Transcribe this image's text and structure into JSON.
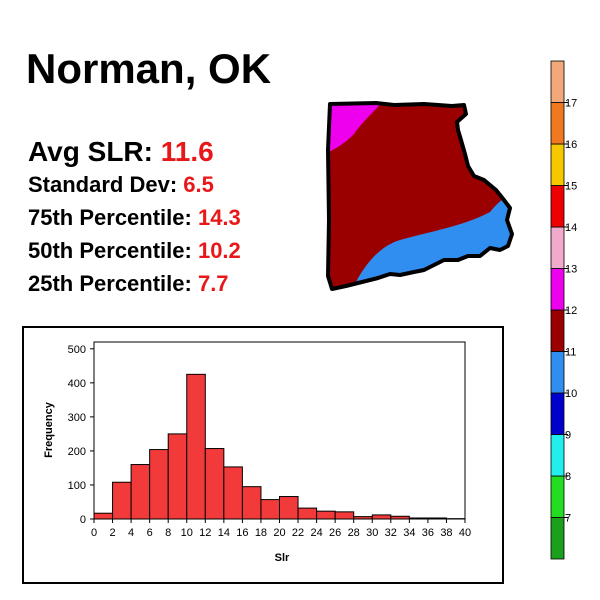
{
  "header": {
    "title": "Norman, OK"
  },
  "stats": [
    {
      "label": "Avg SLR: ",
      "value": "11.6"
    },
    {
      "label": "Standard Dev: ",
      "value": "6.5"
    },
    {
      "label": "75th Percentile: ",
      "value": "14.3"
    },
    {
      "label": "50th Percentile: ",
      "value": "10.2"
    },
    {
      "label": "25th Percentile: ",
      "value": "7.7"
    }
  ],
  "chart_data": {
    "type": "bar",
    "title": "",
    "xlabel": "Slr",
    "ylabel": "Frequency",
    "bin_edges": [
      0,
      2,
      4,
      6,
      8,
      10,
      12,
      14,
      16,
      18,
      20,
      22,
      24,
      26,
      28,
      30,
      32,
      34,
      36,
      38,
      40
    ],
    "values": [
      17,
      108,
      160,
      204,
      250,
      425,
      207,
      153,
      95,
      57,
      66,
      32,
      23,
      21,
      7,
      12,
      8,
      3,
      3,
      1
    ],
    "xticks": [
      "0",
      "2",
      "4",
      "6",
      "8",
      "10",
      "12",
      "14",
      "16",
      "18",
      "20",
      "22",
      "24",
      "26",
      "28",
      "30",
      "32",
      "34",
      "36",
      "38",
      "40"
    ],
    "yticks": [
      "0",
      "100",
      "200",
      "300",
      "400",
      "500"
    ],
    "xlim": [
      0,
      40
    ],
    "ylim": [
      0,
      520
    ],
    "bar_color": "#f23a3a",
    "grid": false
  },
  "colorbar": {
    "labels": [
      "7",
      "8",
      "9",
      "10",
      "11",
      "12",
      "13",
      "14",
      "15",
      "16",
      "17"
    ],
    "colors": [
      "#1aa01a",
      "#22dd22",
      "#22eeee",
      "#0000cc",
      "#2f8ef0",
      "#9b0000",
      "#ee00ee",
      "#f2aacc",
      "#ee0000",
      "#f5c800",
      "#f07820",
      "#f2a878"
    ]
  },
  "map": {
    "colors": {
      "magenta": "#ee00ee",
      "maroon": "#9b0000",
      "blue": "#2f8ef0"
    }
  }
}
